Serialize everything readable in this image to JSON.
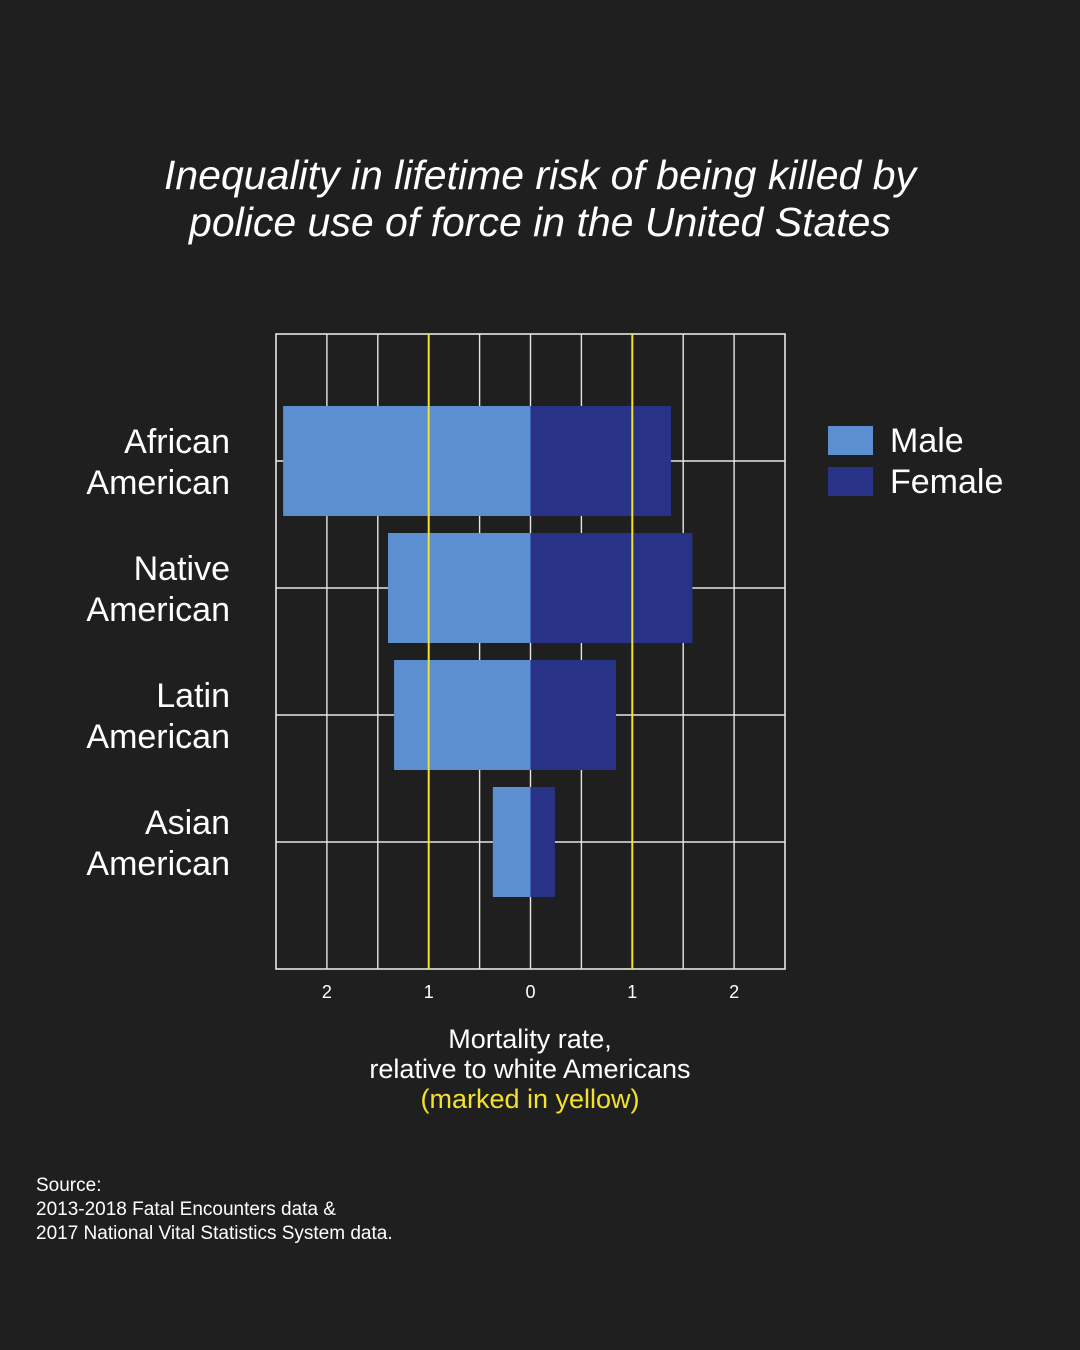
{
  "title": {
    "line1": "Inequality in lifetime risk of being killed by",
    "line2": "police use of force in the United States"
  },
  "chart_data": {
    "type": "bar",
    "orientation": "horizontal-diverging",
    "categories": [
      [
        "African",
        "American"
      ],
      [
        "Native",
        "American"
      ],
      [
        "Latin",
        "American"
      ],
      [
        "Asian",
        "American"
      ]
    ],
    "series": [
      {
        "name": "Male",
        "color": "#5b8fcf",
        "direction": "left",
        "values": [
          2.43,
          1.4,
          1.34,
          0.37
        ]
      },
      {
        "name": "Female",
        "color": "#283287",
        "direction": "right",
        "values": [
          1.38,
          1.59,
          0.84,
          0.24
        ]
      }
    ],
    "x_ticks": [
      {
        "value": -2,
        "label": "2"
      },
      {
        "value": -1,
        "label": "1"
      },
      {
        "value": 0,
        "label": "0"
      },
      {
        "value": 1,
        "label": "1"
      },
      {
        "value": 2,
        "label": "2"
      }
    ],
    "xlim": [
      -2.5,
      2.5
    ],
    "reference_lines": [
      -1,
      1
    ],
    "reference_color": "#f3e12b",
    "grid": true,
    "legend_position": "right"
  },
  "axis_title": {
    "line1": "Mortality rate,",
    "line2": "relative to white Americans",
    "line3": "(marked in yellow)"
  },
  "source": {
    "line1": "Source:",
    "line2": "2013-2018 Fatal Encounters data &",
    "line3": "2017 National Vital Statistics System data."
  }
}
